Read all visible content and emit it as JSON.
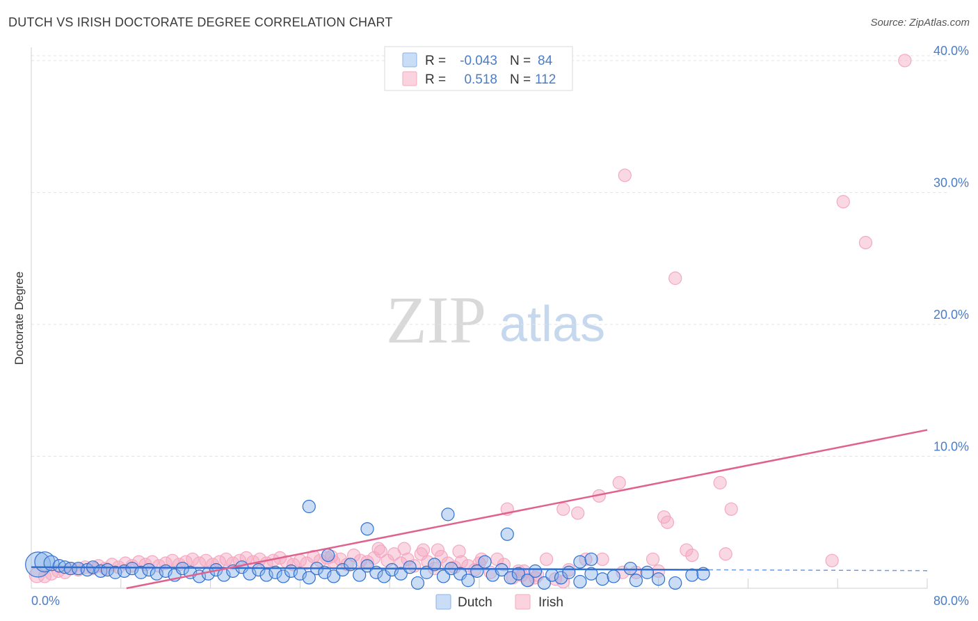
{
  "title": "DUTCH VS IRISH DOCTORATE DEGREE CORRELATION CHART",
  "source": "Source: ZipAtlas.com",
  "watermark": {
    "zip": "ZIP",
    "atlas": "atlas"
  },
  "colors": {
    "dutch": "#8ab4e8",
    "dutch_line": "#2f6fd0",
    "irish": "#f4a8c0",
    "irish_line": "#e0608e",
    "tick": "#4a7cc7"
  },
  "chart_data": {
    "type": "scatter",
    "title": "DUTCH VS IRISH DOCTORATE DEGREE CORRELATION CHART",
    "xlabel": "",
    "ylabel": "Doctorate Degree",
    "xlim": [
      0,
      80
    ],
    "ylim": [
      0,
      41
    ],
    "x_tick_labels": [
      "0.0%",
      "80.0%"
    ],
    "y_ticks": [
      10,
      20,
      30,
      40
    ],
    "y_tick_labels": [
      "10.0%",
      "20.0%",
      "30.0%",
      "40.0%"
    ],
    "legend": [
      {
        "name": "Dutch",
        "r_label": "R =",
        "r": "-0.043",
        "n_label": "N =",
        "n": "84"
      },
      {
        "name": "Irish",
        "r_label": "R =",
        "r": "0.518",
        "n_label": "N =",
        "n": "112"
      }
    ],
    "series": [
      {
        "name": "Dutch",
        "trend": {
          "x": [
            0,
            60.5
          ],
          "y": [
            1.6,
            1.4
          ],
          "dash_to": 80
        },
        "points": [
          [
            0.6,
            1.8,
            1.0
          ],
          [
            1.2,
            2.0,
            0.8
          ],
          [
            1.8,
            1.9,
            0.6
          ],
          [
            2.5,
            1.7,
            0.5
          ],
          [
            3.0,
            1.6,
            0.5
          ],
          [
            3.5,
            1.5,
            0.5
          ],
          [
            4.2,
            1.5,
            0.5
          ],
          [
            5.0,
            1.4,
            0.5
          ],
          [
            5.5,
            1.6,
            0.5
          ],
          [
            6.2,
            1.3,
            0.5
          ],
          [
            6.8,
            1.4,
            0.5
          ],
          [
            7.5,
            1.2,
            0.5
          ],
          [
            8.3,
            1.3,
            0.5
          ],
          [
            9.0,
            1.5,
            0.5
          ],
          [
            9.8,
            1.2,
            0.5
          ],
          [
            10.5,
            1.4,
            0.5
          ],
          [
            11.2,
            1.1,
            0.5
          ],
          [
            12.0,
            1.3,
            0.5
          ],
          [
            12.8,
            1.0,
            0.5
          ],
          [
            13.5,
            1.5,
            0.5
          ],
          [
            14.2,
            1.2,
            0.5
          ],
          [
            15.0,
            0.9,
            0.5
          ],
          [
            15.8,
            1.1,
            0.5
          ],
          [
            16.5,
            1.4,
            0.5
          ],
          [
            17.2,
            1.0,
            0.5
          ],
          [
            18.0,
            1.3,
            0.5
          ],
          [
            18.8,
            1.6,
            0.5
          ],
          [
            19.5,
            1.1,
            0.5
          ],
          [
            20.3,
            1.4,
            0.5
          ],
          [
            21.0,
            1.0,
            0.5
          ],
          [
            21.8,
            1.2,
            0.5
          ],
          [
            22.5,
            0.9,
            0.5
          ],
          [
            23.2,
            1.3,
            0.5
          ],
          [
            24.0,
            1.1,
            0.5
          ],
          [
            24.8,
            0.8,
            0.5
          ],
          [
            25.5,
            1.5,
            0.5
          ],
          [
            26.2,
            1.2,
            0.5
          ],
          [
            27.0,
            0.9,
            0.5
          ],
          [
            27.8,
            1.4,
            0.5
          ],
          [
            28.5,
            1.8,
            0.5
          ],
          [
            29.3,
            1.0,
            0.5
          ],
          [
            30.0,
            1.7,
            0.5
          ],
          [
            30.8,
            1.2,
            0.5
          ],
          [
            31.5,
            0.9,
            0.5
          ],
          [
            32.2,
            1.4,
            0.5
          ],
          [
            33.0,
            1.1,
            0.5
          ],
          [
            33.8,
            1.6,
            0.5
          ],
          [
            34.5,
            0.4,
            0.5
          ],
          [
            35.3,
            1.2,
            0.5
          ],
          [
            36.0,
            1.8,
            0.5
          ],
          [
            36.8,
            0.9,
            0.5
          ],
          [
            37.5,
            1.5,
            0.5
          ],
          [
            38.3,
            1.1,
            0.5
          ],
          [
            39.0,
            0.6,
            0.5
          ],
          [
            39.8,
            1.3,
            0.5
          ],
          [
            40.5,
            2.0,
            0.5
          ],
          [
            41.2,
            1.0,
            0.5
          ],
          [
            42.0,
            1.4,
            0.5
          ],
          [
            42.8,
            0.8,
            0.5
          ],
          [
            43.5,
            1.1,
            0.5
          ],
          [
            44.3,
            0.6,
            0.5
          ],
          [
            45.0,
            1.3,
            0.5
          ],
          [
            45.8,
            0.4,
            0.5
          ],
          [
            46.5,
            1.0,
            0.5
          ],
          [
            47.3,
            0.8,
            0.5
          ],
          [
            48.0,
            1.2,
            0.5
          ],
          [
            49.0,
            0.5,
            0.5
          ],
          [
            50.0,
            1.1,
            0.5
          ],
          [
            51.0,
            0.7,
            0.5
          ],
          [
            52.0,
            0.9,
            0.5
          ],
          [
            54.0,
            0.6,
            0.5
          ],
          [
            55.0,
            1.2,
            0.5
          ],
          [
            56.0,
            0.7,
            0.5
          ],
          [
            57.5,
            0.4,
            0.5
          ],
          [
            59.0,
            1.0,
            0.5
          ],
          [
            60.0,
            1.1,
            0.5
          ],
          [
            26.5,
            2.5,
            0.5
          ],
          [
            49.0,
            2.0,
            0.5
          ],
          [
            24.8,
            6.2,
            0.5
          ],
          [
            30.0,
            4.5,
            0.5
          ],
          [
            37.2,
            5.6,
            0.5
          ],
          [
            42.5,
            4.1,
            0.5
          ],
          [
            50.0,
            2.2,
            0.5
          ],
          [
            53.5,
            1.5,
            0.5
          ]
        ]
      },
      {
        "name": "Irish",
        "trend": {
          "x": [
            8.5,
            80
          ],
          "y": [
            0,
            12
          ]
        },
        "points": [
          [
            0.5,
            1.0,
            0.6
          ],
          [
            1.2,
            0.9,
            0.5
          ],
          [
            1.8,
            1.1,
            0.5
          ],
          [
            2.4,
            1.3,
            0.5
          ],
          [
            3.0,
            1.2,
            0.5
          ],
          [
            3.6,
            1.5,
            0.5
          ],
          [
            4.2,
            1.4,
            0.5
          ],
          [
            4.8,
            1.6,
            0.5
          ],
          [
            5.5,
            1.5,
            0.5
          ],
          [
            6.0,
            1.7,
            0.5
          ],
          [
            6.6,
            1.5,
            0.5
          ],
          [
            7.2,
            1.8,
            0.5
          ],
          [
            7.8,
            1.6,
            0.5
          ],
          [
            8.4,
            1.9,
            0.5
          ],
          [
            9.0,
            1.7,
            0.5
          ],
          [
            9.6,
            2.0,
            0.5
          ],
          [
            10.2,
            1.8,
            0.5
          ],
          [
            10.8,
            2.0,
            0.5
          ],
          [
            11.4,
            1.7,
            0.5
          ],
          [
            12.0,
            1.9,
            0.5
          ],
          [
            12.6,
            2.1,
            0.5
          ],
          [
            13.2,
            1.8,
            0.5
          ],
          [
            13.8,
            2.0,
            0.5
          ],
          [
            14.4,
            2.2,
            0.5
          ],
          [
            15.0,
            1.9,
            0.5
          ],
          [
            15.6,
            2.1,
            0.5
          ],
          [
            16.2,
            1.8,
            0.5
          ],
          [
            16.8,
            2.0,
            0.5
          ],
          [
            17.4,
            2.2,
            0.5
          ],
          [
            18.0,
            1.9,
            0.5
          ],
          [
            18.6,
            2.1,
            0.5
          ],
          [
            19.2,
            2.3,
            0.5
          ],
          [
            19.8,
            2.0,
            0.5
          ],
          [
            20.4,
            2.2,
            0.5
          ],
          [
            21.0,
            1.9,
            0.5
          ],
          [
            21.6,
            2.1,
            0.5
          ],
          [
            22.2,
            2.3,
            0.5
          ],
          [
            22.8,
            2.0,
            0.5
          ],
          [
            23.4,
            1.8,
            0.5
          ],
          [
            24.0,
            2.1,
            0.5
          ],
          [
            24.6,
            1.9,
            0.5
          ],
          [
            25.2,
            2.4,
            0.5
          ],
          [
            25.8,
            2.1,
            0.5
          ],
          [
            26.4,
            2.3,
            0.5
          ],
          [
            27.0,
            2.0,
            0.5
          ],
          [
            27.6,
            2.2,
            0.5
          ],
          [
            28.2,
            1.8,
            0.5
          ],
          [
            28.8,
            2.5,
            0.5
          ],
          [
            29.4,
            2.1,
            0.5
          ],
          [
            30.0,
            2.0,
            0.5
          ],
          [
            30.6,
            2.3,
            0.5
          ],
          [
            31.2,
            2.8,
            0.5
          ],
          [
            31.8,
            2.1,
            0.5
          ],
          [
            32.4,
            2.6,
            0.5
          ],
          [
            33.0,
            1.9,
            0.5
          ],
          [
            33.6,
            2.2,
            0.5
          ],
          [
            34.2,
            1.7,
            0.5
          ],
          [
            34.8,
            2.6,
            0.5
          ],
          [
            35.4,
            2.0,
            0.5
          ],
          [
            36.0,
            1.5,
            0.5
          ],
          [
            36.6,
            2.4,
            0.5
          ],
          [
            37.2,
            1.9,
            0.5
          ],
          [
            37.8,
            1.6,
            0.5
          ],
          [
            38.4,
            2.0,
            0.5
          ],
          [
            39.0,
            1.7,
            0.5
          ],
          [
            39.6,
            1.4,
            0.5
          ],
          [
            40.2,
            2.2,
            0.5
          ],
          [
            41.0,
            1.2,
            0.5
          ],
          [
            41.6,
            2.2,
            0.5
          ],
          [
            42.2,
            1.8,
            0.5
          ],
          [
            43.0,
            0.8,
            0.5
          ],
          [
            43.8,
            1.0,
            0.5
          ],
          [
            44.4,
            0.6,
            0.5
          ],
          [
            45.0,
            0.8,
            0.5
          ],
          [
            46.0,
            2.2,
            0.5
          ],
          [
            47.5,
            0.5,
            0.5
          ],
          [
            48.0,
            1.4,
            0.5
          ],
          [
            49.5,
            2.2,
            0.5
          ],
          [
            51.0,
            2.2,
            0.5
          ],
          [
            54.0,
            1.2,
            0.5
          ],
          [
            55.5,
            2.2,
            0.5
          ],
          [
            56.0,
            1.3,
            0.5
          ],
          [
            58.5,
            2.9,
            0.5
          ],
          [
            59.0,
            2.5,
            0.5
          ],
          [
            62.0,
            2.6,
            0.5
          ],
          [
            71.5,
            2.1,
            0.5
          ],
          [
            42.5,
            6.0,
            0.5
          ],
          [
            47.5,
            6.0,
            0.5
          ],
          [
            48.8,
            5.7,
            0.5
          ],
          [
            50.7,
            7.0,
            0.5
          ],
          [
            52.5,
            8.0,
            0.5
          ],
          [
            56.5,
            5.4,
            0.5
          ],
          [
            56.8,
            5.0,
            0.5
          ],
          [
            61.5,
            8.0,
            0.5
          ],
          [
            62.5,
            6.0,
            0.5
          ],
          [
            33.3,
            3.0,
            0.5
          ],
          [
            35.0,
            2.9,
            0.5
          ],
          [
            36.3,
            2.9,
            0.5
          ],
          [
            31.0,
            3.0,
            0.5
          ],
          [
            43.5,
            1.3,
            0.5
          ],
          [
            53.0,
            31.3,
            0.5
          ],
          [
            57.5,
            23.5,
            0.5
          ],
          [
            72.5,
            29.3,
            0.5
          ],
          [
            74.5,
            26.2,
            0.5
          ],
          [
            78.0,
            40.0,
            0.5
          ],
          [
            45.2,
            1.0,
            0.5
          ],
          [
            46.8,
            0.7,
            0.5
          ],
          [
            52.8,
            1.2,
            0.5
          ],
          [
            38.2,
            2.8,
            0.5
          ],
          [
            40.0,
            1.9,
            0.5
          ],
          [
            44.0,
            1.3,
            0.5
          ],
          [
            26.8,
            2.4,
            0.5
          ]
        ]
      }
    ]
  }
}
